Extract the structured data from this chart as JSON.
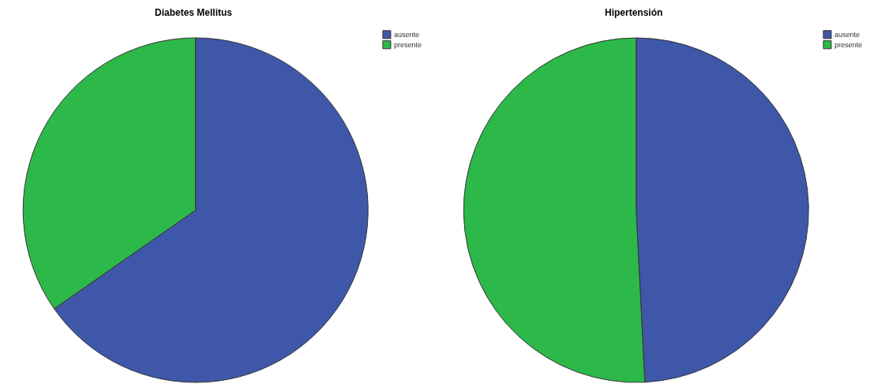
{
  "chart_data": [
    {
      "type": "pie",
      "title": "Diabetes Mellitus",
      "categories": [
        "ausente",
        "presente"
      ],
      "values": [
        65.3,
        34.7
      ],
      "colors": [
        "#3f57a8",
        "#2db84a"
      ],
      "legend": "top right"
    },
    {
      "type": "pie",
      "title": "Hipertensión",
      "categories": [
        "ausente",
        "presente"
      ],
      "values": [
        49.2,
        50.8
      ],
      "colors": [
        "#3f57a8",
        "#2db84a"
      ],
      "legend": "top right"
    }
  ]
}
